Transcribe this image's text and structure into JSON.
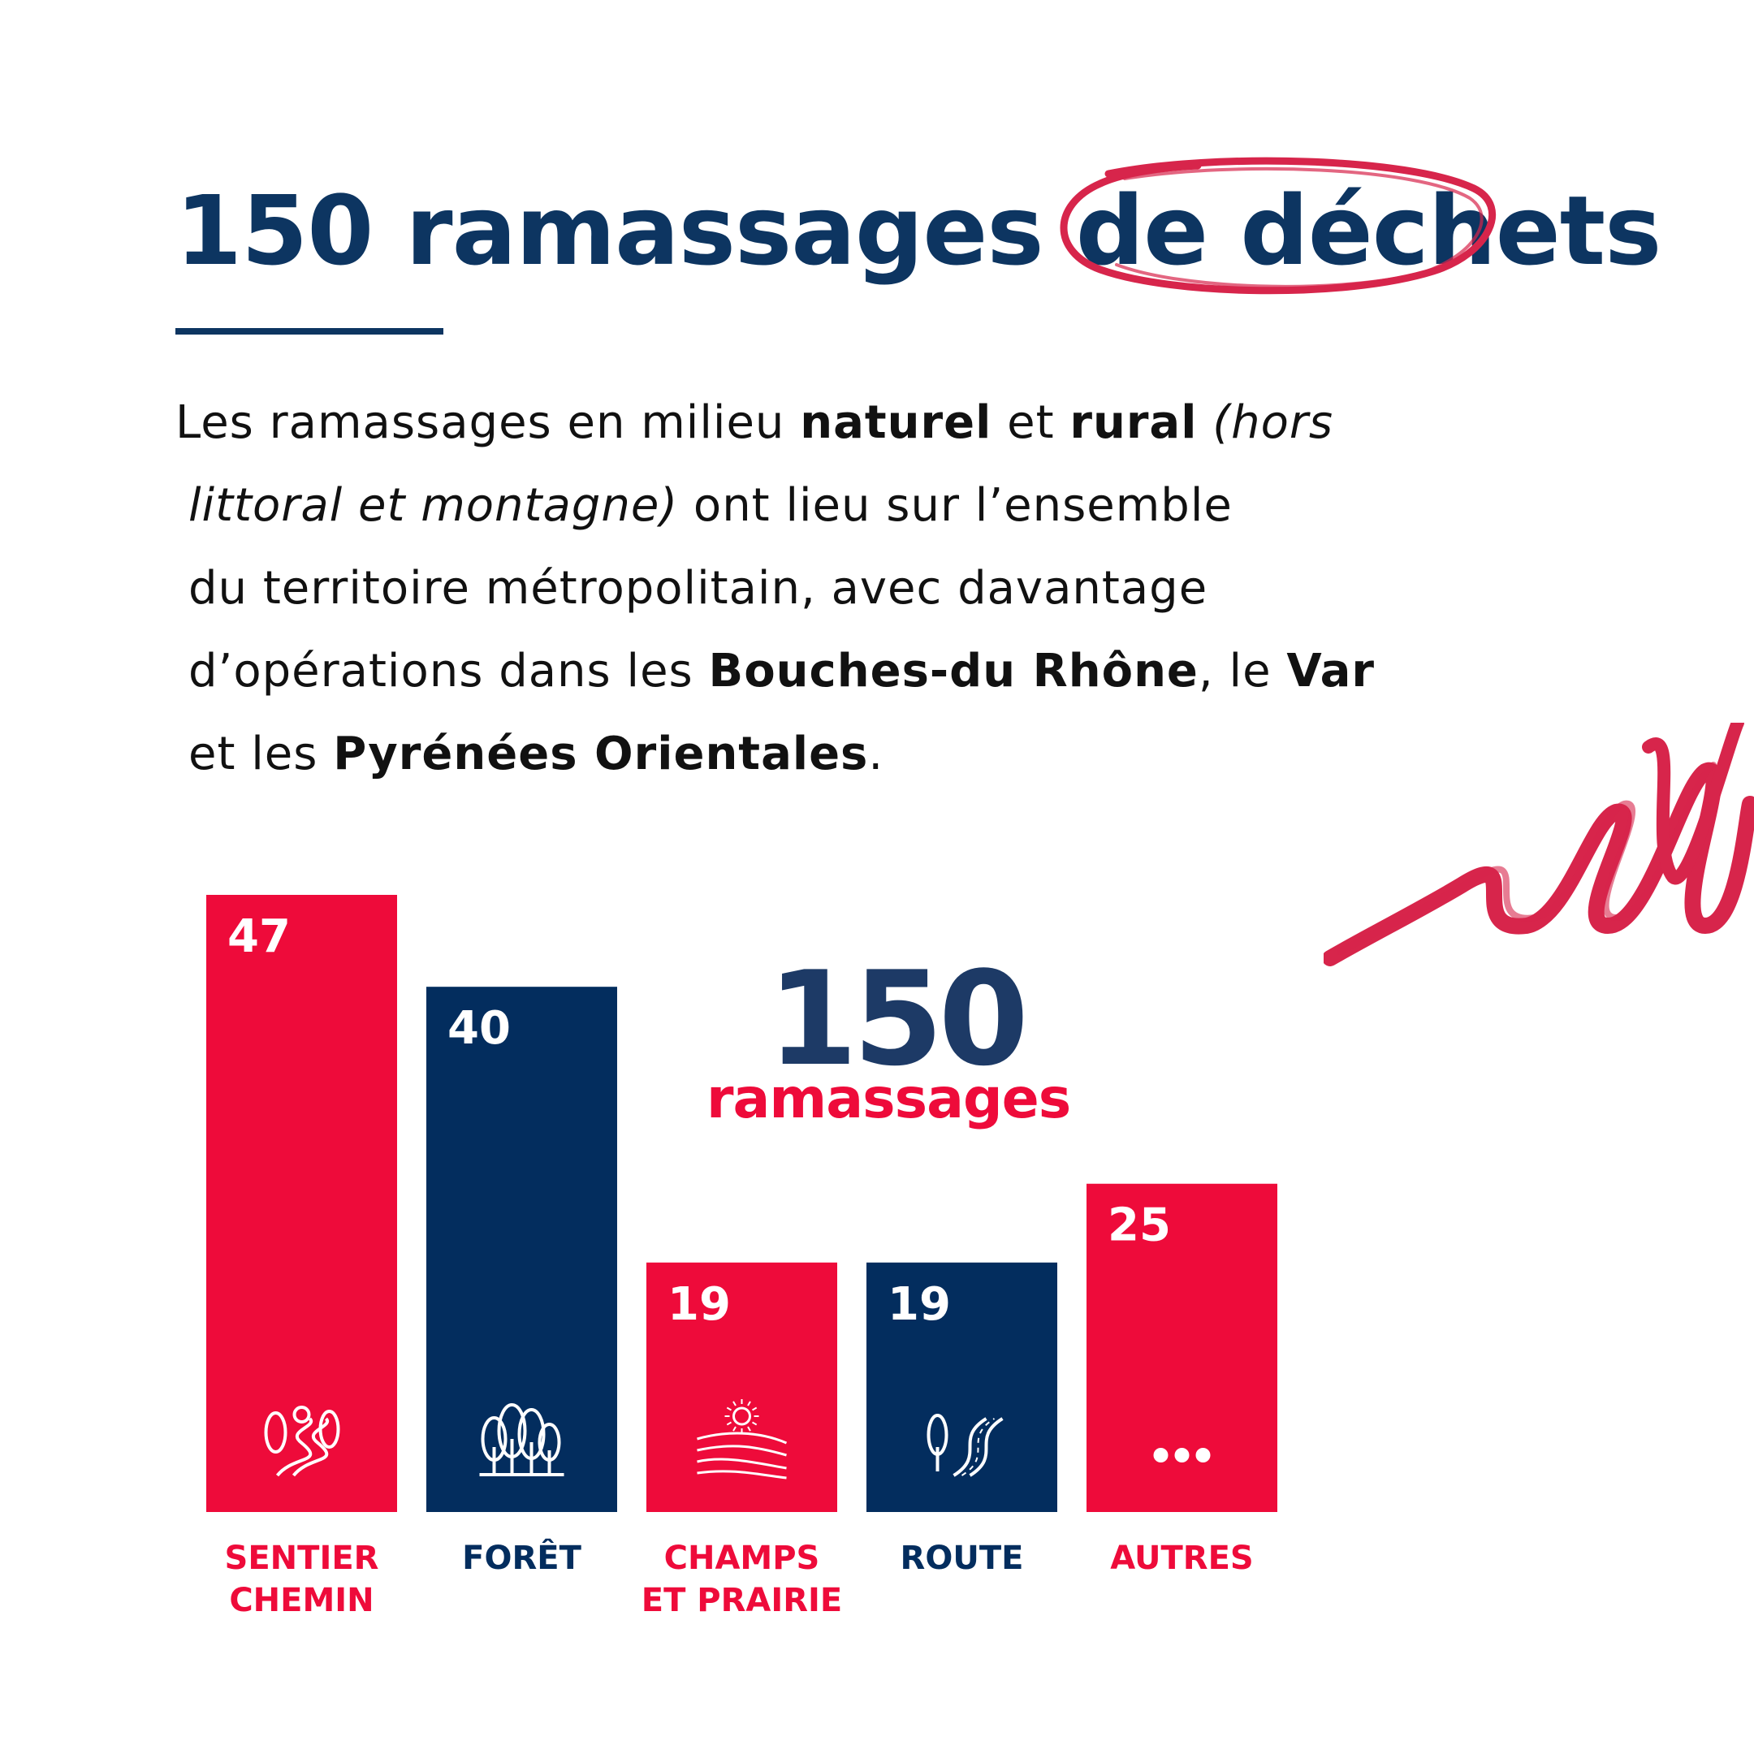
{
  "title": {
    "prefix": "150 ramassages de ",
    "highlight": "déchets"
  },
  "paragraph": {
    "l1": {
      "a": "Les ramassages en milieu ",
      "b": "naturel",
      "c": " et ",
      "d": "rural",
      "e": " (hors"
    },
    "l2": {
      "a": "littoral et montagne)",
      "b": " ont lieu sur l’ensemble"
    },
    "l3": {
      "a": "du territoire métropolitain, avec davantage"
    },
    "l4": {
      "a": "d’opérations dans les ",
      "b": "Bouches-du Rhône",
      "c": ", le ",
      "d": "Var"
    },
    "l5": {
      "a": "et les ",
      "b": "Pyrénées Orientales",
      "c": "."
    }
  },
  "total": {
    "number": "150",
    "label": "ramassages"
  },
  "colors": {
    "red": "#ee0b3a",
    "navy": "#032d5e",
    "title": "#0d3561",
    "accent": "#d7254b"
  },
  "chart_data": {
    "type": "bar",
    "categories": [
      [
        "SENTIER",
        "CHEMIN"
      ],
      [
        "FORÊT"
      ],
      [
        "CHAMPS",
        "ET PRAIRIE"
      ],
      [
        "ROUTE"
      ],
      [
        "AUTRES"
      ]
    ],
    "values": [
      47,
      40,
      19,
      19,
      25
    ],
    "bar_colors": [
      "#ee0b3a",
      "#032d5e",
      "#ee0b3a",
      "#032d5e",
      "#ee0b3a"
    ],
    "icons": [
      "path-trees-icon",
      "forest-icon",
      "fields-sun-icon",
      "road-tree-icon",
      "dots-icon"
    ],
    "ylim": [
      0,
      47
    ]
  }
}
